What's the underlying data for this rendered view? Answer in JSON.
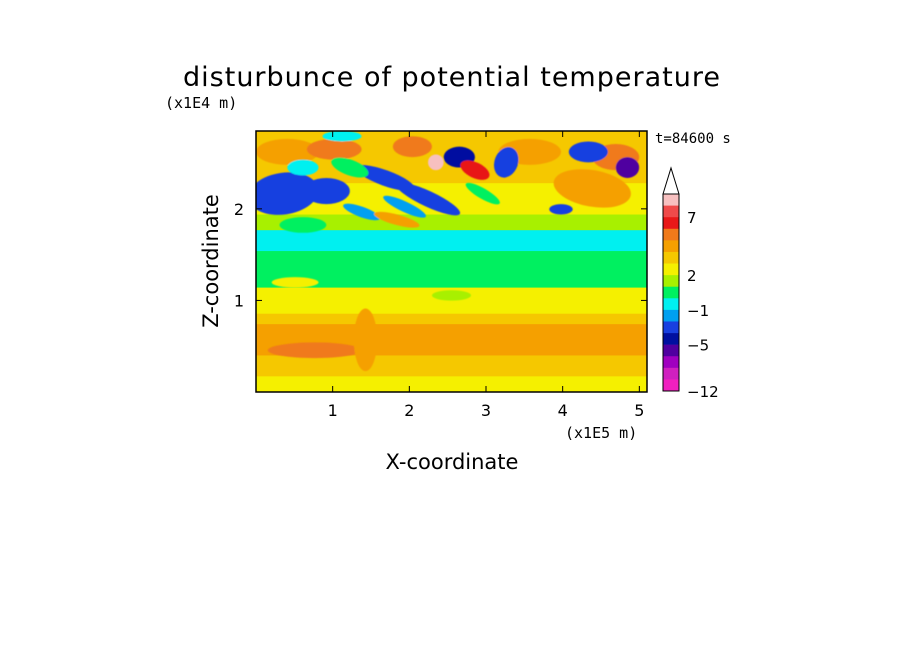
{
  "chart_data": {
    "type": "heatmap",
    "title": "disturbunce of potential temperature",
    "xlabel": "X-coordinate",
    "ylabel": "Z-coordinate",
    "x_unit": "(x1E5 m)",
    "y_unit": "(x1E4 m)",
    "time_label": "t=84600 s",
    "xlim": [
      0.0,
      5.1
    ],
    "ylim": [
      0.0,
      2.85
    ],
    "x_ticks": [
      1,
      2,
      3,
      4,
      5
    ],
    "y_ticks": [
      1,
      2
    ],
    "grid": false,
    "colorbar": {
      "position": "right",
      "colors_top_to_bottom": [
        "#f7c0c0",
        "#ef4a4a",
        "#e81818",
        "#f07a1a",
        "#f5a000",
        "#f5c800",
        "#f5f000",
        "#a8f000",
        "#00f060",
        "#00f0f0",
        "#00a0f0",
        "#1840e0",
        "#0010a0",
        "#5000a0",
        "#a000c0",
        "#d020c0",
        "#f020c0"
      ],
      "tick_labels": [
        "7",
        "2",
        "−1",
        "−5",
        "−12"
      ]
    }
  }
}
